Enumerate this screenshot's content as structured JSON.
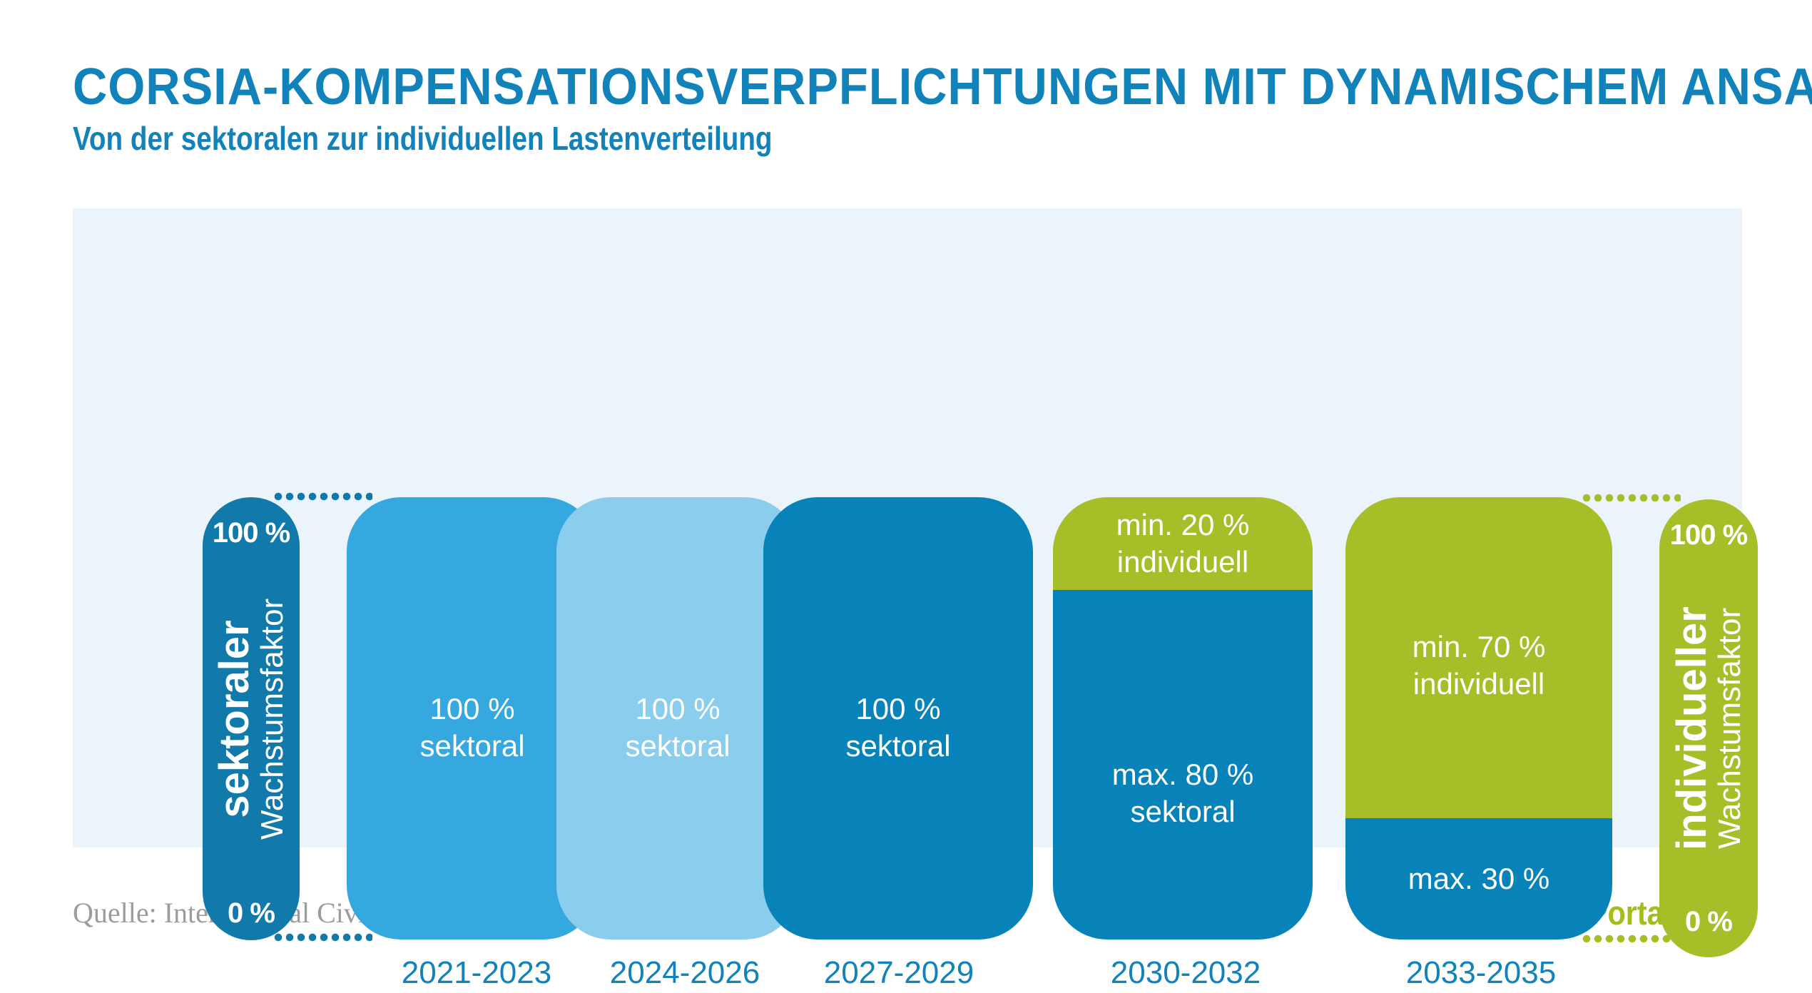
{
  "header": {
    "title": "CORSIA-KOMPENSATIONSVERPFLICHTUNGEN MIT DYNAMISCHEM ANSATZ",
    "subtitle": "Von der sektoralen zur individuellen Lastenverteilung"
  },
  "chart": {
    "left_axis": {
      "top": "100 %",
      "bottom": "0 %",
      "name_bold": "sektoraler",
      "name_regular": "Wachstumsfaktor"
    },
    "right_axis": {
      "top": "100 %",
      "bottom": "0 %",
      "name_bold": "individueller",
      "name_regular": "Wachstumsfaktor"
    },
    "bars": [
      {
        "period": "2021-2023",
        "segments": [
          {
            "kind": "sektoral",
            "line1": "100 %",
            "line2": "sektoral"
          }
        ]
      },
      {
        "period": "2024-2026",
        "segments": [
          {
            "kind": "sektoral",
            "line1": "100 %",
            "line2": "sektoral"
          }
        ]
      },
      {
        "period": "2027-2029",
        "segments": [
          {
            "kind": "sektoral",
            "line1": "100 %",
            "line2": "sektoral"
          }
        ]
      },
      {
        "period": "2030-2032",
        "segments": [
          {
            "kind": "individuell",
            "line1": "min. 20 %",
            "line2": "individuell"
          },
          {
            "kind": "sektoral",
            "line1": "max. 80 %",
            "line2": "sektoral"
          }
        ]
      },
      {
        "period": "2033-2035",
        "segments": [
          {
            "kind": "individuell",
            "line1": "min. 70 %",
            "line2": "individuell"
          },
          {
            "kind": "sektoral",
            "line1": "max. 30 %"
          }
        ]
      }
    ]
  },
  "footer": {
    "source": "Quelle: International Civil Aviation Organization (ICAO)",
    "brand": "Klimaschutz-Portal.aero"
  },
  "colors": {
    "title_blue": "#1182BA",
    "pill_blue": "#127AAB",
    "bar_medium_blue": "#35A8DF",
    "bar_light_blue": "#8BCDEC",
    "bar_dark_blue": "#0883B9",
    "green": "#A6BE28",
    "brand_green": "#A3BD1B",
    "panel_background": "#EBF4FA",
    "source_gray": "#9C9C9C"
  },
  "chart_data": {
    "type": "bar",
    "subtype": "stacked-percentage",
    "title": "CORSIA-Kompensationsverpflichtungen mit dynamischem Ansatz",
    "categories": [
      "2021-2023",
      "2024-2026",
      "2027-2029",
      "2030-2032",
      "2033-2035"
    ],
    "series": [
      {
        "name": "sektoral",
        "values": [
          100,
          100,
          100,
          80,
          30
        ],
        "qualifiers": [
          "",
          "",
          "",
          "max.",
          "max."
        ]
      },
      {
        "name": "individuell",
        "values": [
          0,
          0,
          0,
          20,
          70
        ],
        "qualifiers": [
          "",
          "",
          "",
          "min.",
          "min."
        ]
      }
    ],
    "y_axis_left": {
      "label": "sektoraler Wachstumsfaktor",
      "min_label": "0 %",
      "max_label": "100 %"
    },
    "y_axis_right": {
      "label": "individueller Wachstumsfaktor",
      "min_label": "0 %",
      "max_label": "100 %"
    },
    "ylim": [
      0,
      100
    ],
    "grid": false,
    "legend": false
  }
}
